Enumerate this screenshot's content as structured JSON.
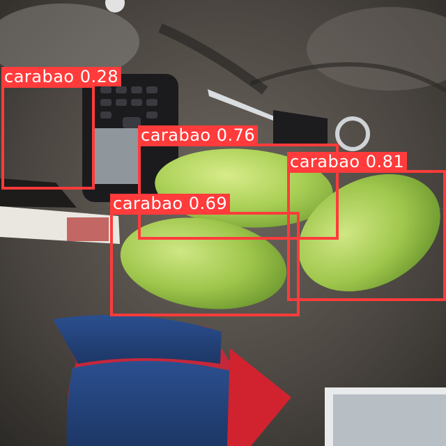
{
  "detections": [
    {
      "label": "carabao",
      "score": "0.28"
    },
    {
      "label": "carabao",
      "score": "0.76"
    },
    {
      "label": "carabao",
      "score": "0.81"
    },
    {
      "label": "carabao",
      "score": "0.69"
    }
  ],
  "colors": {
    "box": "#ff3b3b",
    "label_text": "#ffffff"
  }
}
